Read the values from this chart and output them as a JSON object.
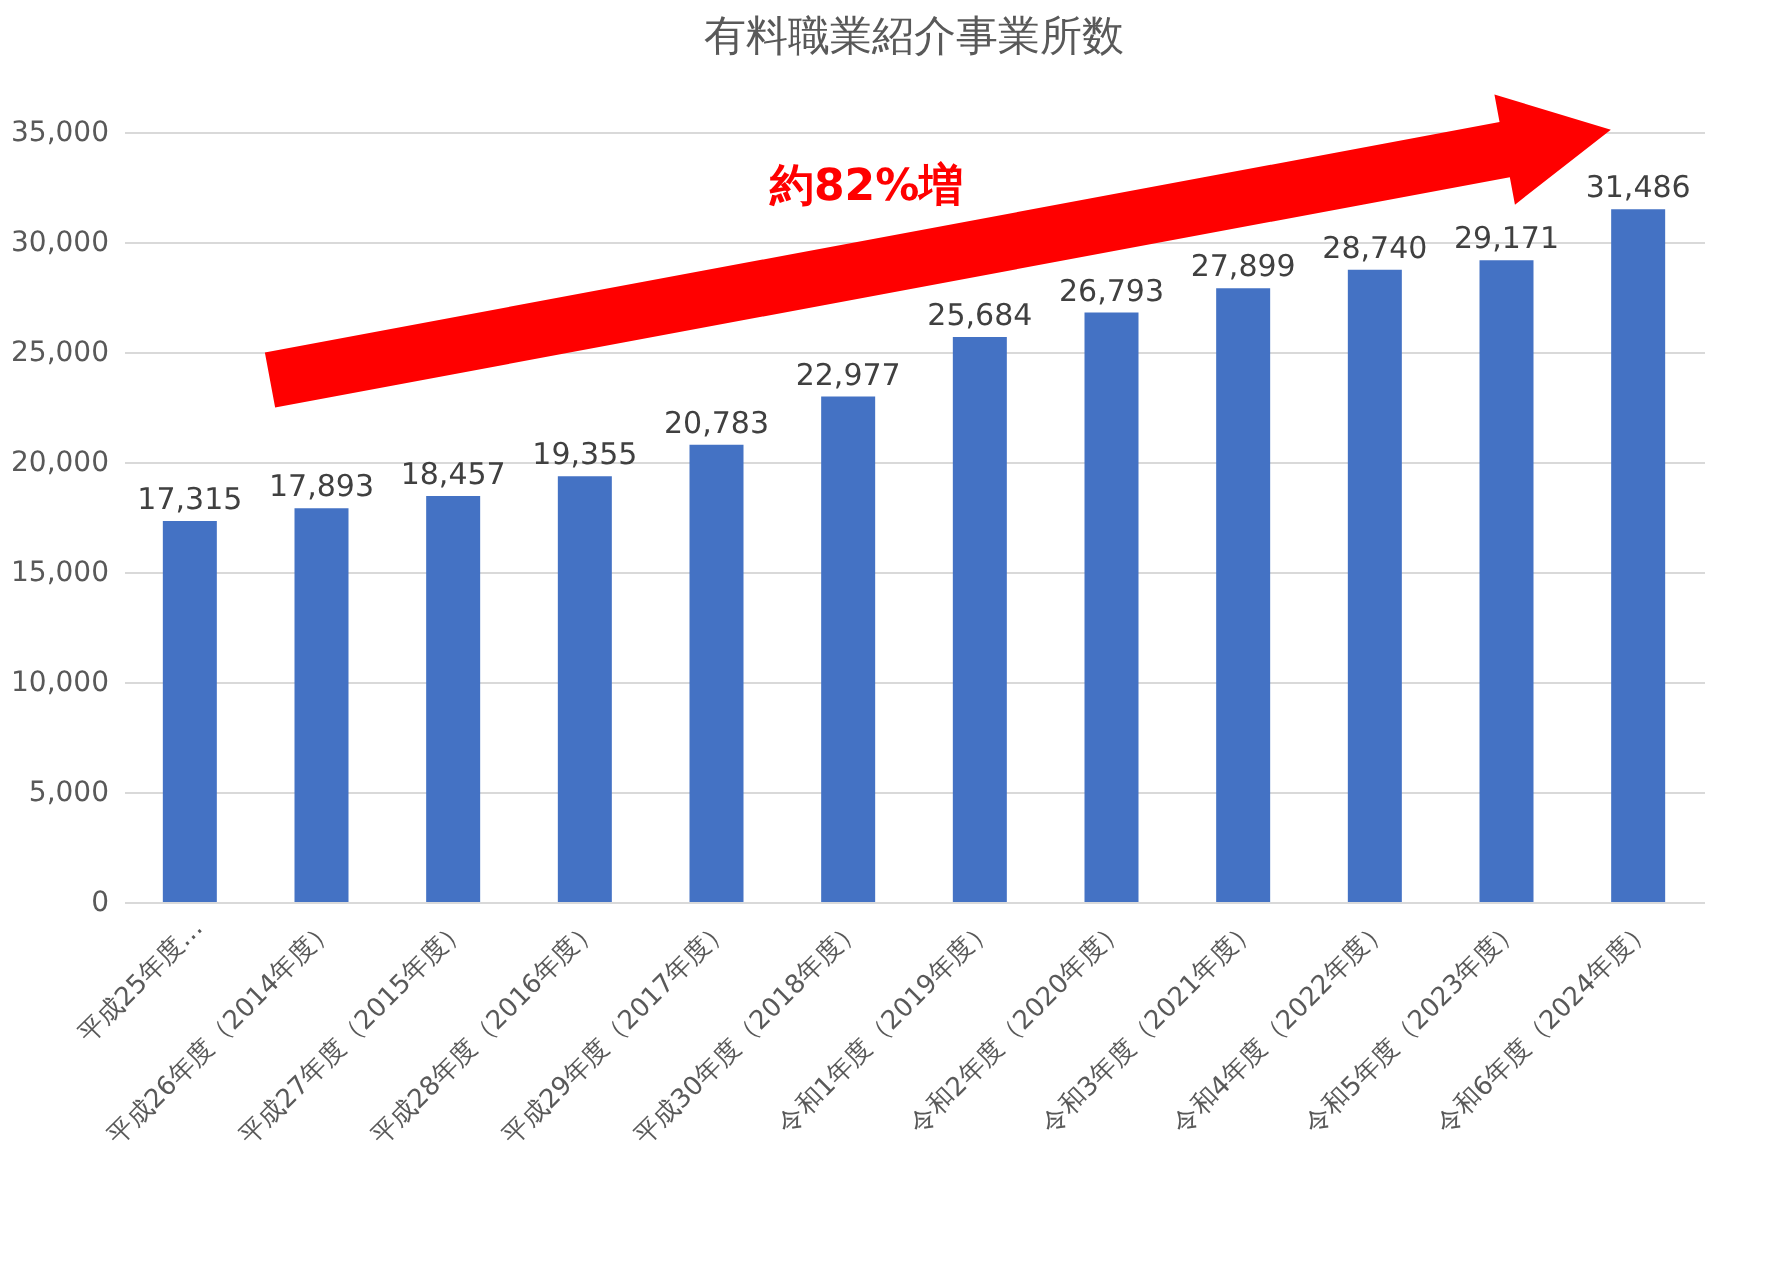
{
  "chart_data": {
    "type": "bar",
    "title": "有料職業紹介事業所数",
    "categories": [
      "平成25年度…",
      "平成26年度（2014年度）",
      "平成27年度（2015年度）",
      "平成28年度（2016年度）",
      "平成29年度（2017年度）",
      "平成30年度（2018年度）",
      "令和1年度（2019年度）",
      "令和2年度（2020年度）",
      "令和3年度（2021年度）",
      "令和4年度（2022年度）",
      "令和5年度（2023年度）",
      "令和6年度（2024年度）"
    ],
    "values": [
      17315,
      17893,
      18457,
      19355,
      20783,
      22977,
      25684,
      26793,
      27899,
      28740,
      29171,
      31486
    ],
    "color": "#4472c4",
    "value_labels": [
      "17,315",
      "17,893",
      "18,457",
      "19,355",
      "20,783",
      "22,977",
      "25,684",
      "26,793",
      "27,899",
      "28,740",
      "29,171",
      "31,486"
    ],
    "ylim": [
      0,
      35000
    ],
    "yticks": [
      0,
      {
        "value": 5000,
        "label": "5,000"
      },
      {
        "value": 10000,
        "label": "10,000"
      },
      {
        "value": 15000,
        "label": "15,000"
      },
      {
        "value": 20000,
        "label": "20,000"
      },
      {
        "value": 25000,
        "label": "25,000"
      },
      {
        "value": 30000,
        "label": "30,000"
      },
      {
        "value": 35000,
        "label": "35,000"
      }
    ],
    "grid": "y",
    "annotations": [
      "約82%増"
    ]
  }
}
